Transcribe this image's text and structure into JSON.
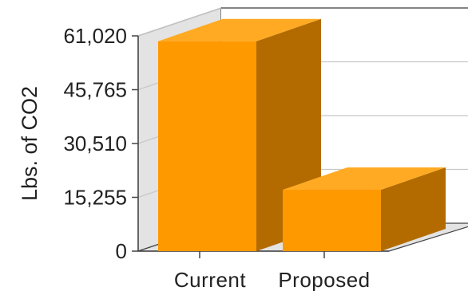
{
  "chart_data": {
    "type": "bar",
    "title": "",
    "xlabel": "",
    "ylabel": "Lbs. of CO2",
    "categories": [
      "Current",
      "Proposed"
    ],
    "values": [
      59500,
      17400
    ],
    "ylim": [
      0,
      61020
    ],
    "ytick_labels": [
      "0",
      "15,255",
      "30,510",
      "45,765",
      "61,020"
    ],
    "grid": true,
    "legend": "none",
    "style": "3d",
    "colors": {
      "bar_front": "#FF9900",
      "bar_side": "#B36B00",
      "bar_top": "#FFAA22",
      "back_wall": "#FFFFFF",
      "side_wall": "#E3E3E3",
      "floor": "#E3E3E3",
      "grid": "#C8C8C8"
    }
  }
}
